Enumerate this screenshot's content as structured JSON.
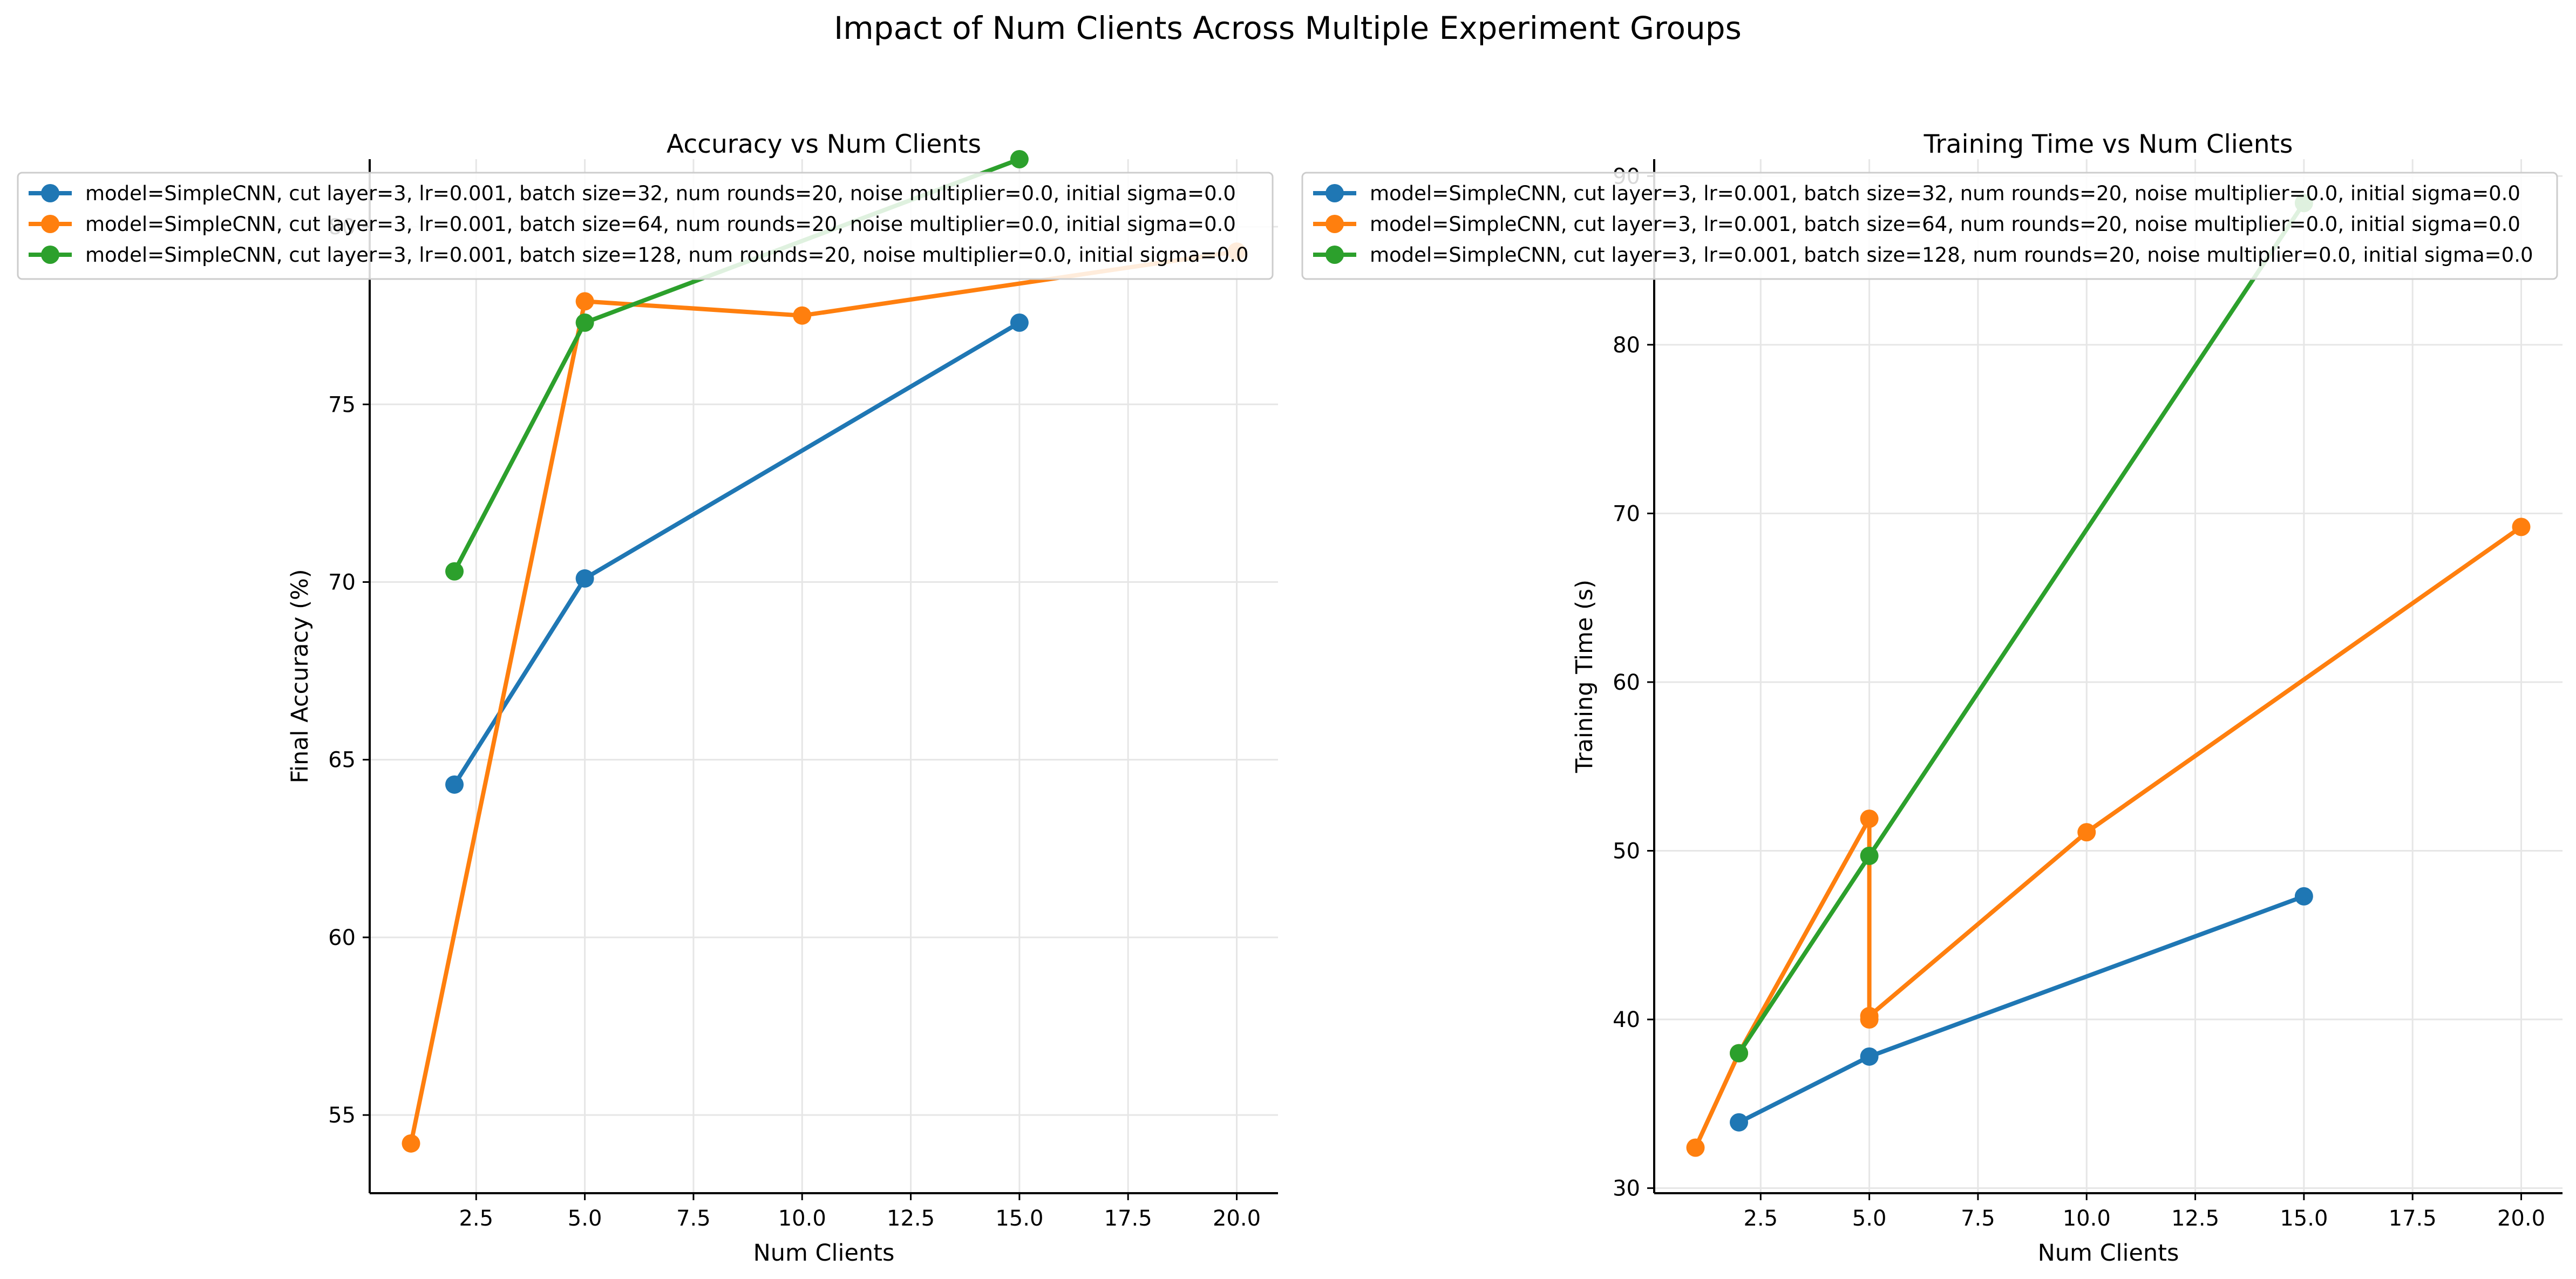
{
  "figure": {
    "suptitle": "Impact of Num Clients Across Multiple Experiment Groups"
  },
  "colors": {
    "series": [
      "#1f77b4",
      "#ff7f0e",
      "#2ca02c"
    ],
    "grid": "#e6e6e6"
  },
  "chart_data": [
    {
      "type": "line",
      "title": "Accuracy vs Num Clients",
      "xlabel": "Num Clients",
      "ylabel": "Final Accuracy (%)",
      "xlim": [
        0.05,
        20.95
      ],
      "ylim": [
        52.8,
        81.9
      ],
      "xticks": [
        2.5,
        5.0,
        7.5,
        10.0,
        12.5,
        15.0,
        17.5,
        20.0
      ],
      "xtick_labels": [
        "2.5",
        "5.0",
        "7.5",
        "10.0",
        "12.5",
        "15.0",
        "17.5",
        "20.0"
      ],
      "yticks": [
        55,
        60,
        65,
        70,
        75,
        80
      ],
      "ytick_labels": [
        "55",
        "60",
        "65",
        "70",
        "75",
        "80"
      ],
      "grid": true,
      "legend": "upper-left",
      "series": [
        {
          "name": "model=SimpleCNN, cut layer=3, lr=0.001, batch size=32, num rounds=20, noise multiplier=0.0, initial sigma=0.0",
          "x": [
            2,
            5,
            15
          ],
          "y": [
            64.3,
            70.1,
            77.3
          ]
        },
        {
          "name": "model=SimpleCNN, cut layer=3, lr=0.001, batch size=64, num rounds=20, noise multiplier=0.0, initial sigma=0.0",
          "x": [
            1,
            5,
            10,
            20
          ],
          "y": [
            54.2,
            77.9,
            77.5,
            79.3
          ]
        },
        {
          "name": "model=SimpleCNN, cut layer=3, lr=0.001, batch size=128, num rounds=20, noise multiplier=0.0, initial sigma=0.0",
          "x": [
            2,
            5,
            15
          ],
          "y": [
            70.3,
            77.3,
            81.9
          ]
        }
      ]
    },
    {
      "type": "line",
      "title": "Training Time vs Num Clients",
      "xlabel": "Num Clients",
      "ylabel": "Training Time (s)",
      "xlim": [
        0.05,
        20.95
      ],
      "ylim": [
        29.7,
        91.0
      ],
      "xticks": [
        2.5,
        5.0,
        7.5,
        10.0,
        12.5,
        15.0,
        17.5,
        20.0
      ],
      "xtick_labels": [
        "2.5",
        "5.0",
        "7.5",
        "10.0",
        "12.5",
        "15.0",
        "17.5",
        "20.0"
      ],
      "yticks": [
        30,
        40,
        50,
        60,
        70,
        80,
        90
      ],
      "ytick_labels": [
        "30",
        "40",
        "50",
        "60",
        "70",
        "80",
        "90"
      ],
      "grid": true,
      "legend": "upper-left",
      "series": [
        {
          "name": "model=SimpleCNN, cut layer=3, lr=0.001, batch size=32, num rounds=20, noise multiplier=0.0, initial sigma=0.0",
          "x": [
            2,
            5,
            15
          ],
          "y": [
            33.9,
            37.8,
            47.3
          ]
        },
        {
          "name": "model=SimpleCNN, cut layer=3, lr=0.001, batch size=64, num rounds=20, noise multiplier=0.0, initial sigma=0.0",
          "x": [
            1,
            2,
            5,
            5,
            5,
            10,
            20
          ],
          "y": [
            32.4,
            38.0,
            51.9,
            40.0,
            40.2,
            51.1,
            69.2
          ]
        },
        {
          "name": "model=SimpleCNN, cut layer=3, lr=0.001, batch size=128, num rounds=20, noise multiplier=0.0, initial sigma=0.0",
          "x": [
            2,
            5,
            15
          ],
          "y": [
            38.0,
            49.7,
            88.4
          ]
        }
      ]
    }
  ]
}
